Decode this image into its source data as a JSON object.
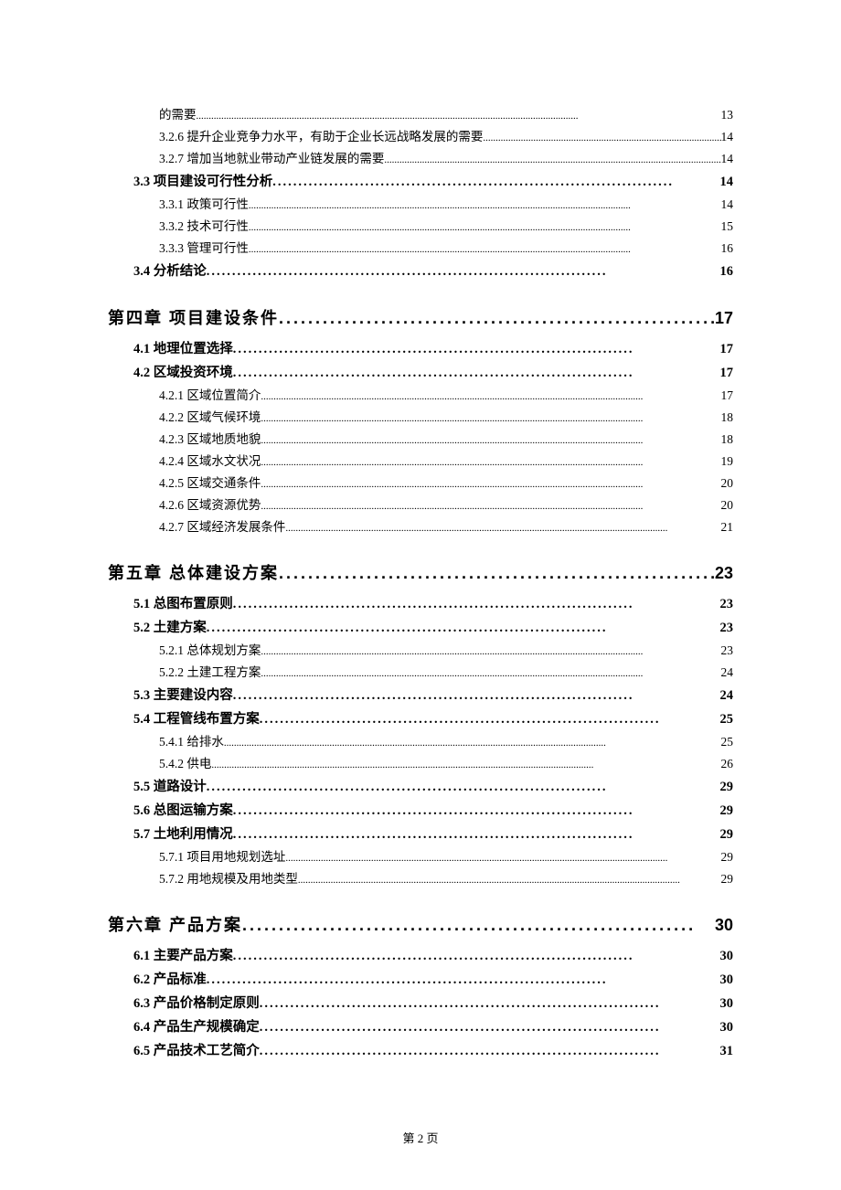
{
  "footer": "第 2 页",
  "entries": [
    {
      "level": 3,
      "label": "的需要",
      "page": "13"
    },
    {
      "level": 3,
      "label": "3.2.6 提升企业竞争力水平，有助于企业长远战略发展的需要",
      "page": "14"
    },
    {
      "level": 3,
      "label": "3.2.7 增加当地就业带动产业链发展的需要",
      "page": "14"
    },
    {
      "level": 2,
      "label": "3.3 项目建设可行性分析",
      "page": "14"
    },
    {
      "level": 3,
      "label": "3.3.1 政策可行性",
      "page": "14"
    },
    {
      "level": 3,
      "label": "3.3.2 技术可行性",
      "page": "15"
    },
    {
      "level": 3,
      "label": "3.3.3 管理可行性",
      "page": "16"
    },
    {
      "level": 2,
      "label": "3.4 分析结论",
      "page": "16"
    },
    {
      "level": 1,
      "label": "第四章 项目建设条件",
      "page": "17"
    },
    {
      "level": 2,
      "label": "4.1 地理位置选择",
      "page": "17"
    },
    {
      "level": 2,
      "label": "4.2 区域投资环境",
      "page": "17"
    },
    {
      "level": 3,
      "label": "4.2.1 区域位置简介",
      "page": "17"
    },
    {
      "level": 3,
      "label": "4.2.2 区域气候环境",
      "page": "18"
    },
    {
      "level": 3,
      "label": "4.2.3 区域地质地貌",
      "page": "18"
    },
    {
      "level": 3,
      "label": "4.2.4 区域水文状况",
      "page": "19"
    },
    {
      "level": 3,
      "label": "4.2.5 区域交通条件",
      "page": "20"
    },
    {
      "level": 3,
      "label": "4.2.6 区域资源优势",
      "page": "20"
    },
    {
      "level": 3,
      "label": "4.2.7 区域经济发展条件",
      "page": "21"
    },
    {
      "level": 1,
      "label": "第五章 总体建设方案",
      "page": "23"
    },
    {
      "level": 2,
      "label": "5.1 总图布置原则",
      "page": "23"
    },
    {
      "level": 2,
      "label": "5.2 土建方案",
      "page": "23"
    },
    {
      "level": 3,
      "label": "5.2.1 总体规划方案",
      "page": "23"
    },
    {
      "level": 3,
      "label": "5.2.2 土建工程方案",
      "page": "24"
    },
    {
      "level": 2,
      "label": "5.3 主要建设内容",
      "page": "24"
    },
    {
      "level": 2,
      "label": "5.4 工程管线布置方案",
      "page": "25"
    },
    {
      "level": 3,
      "label": "5.4.1 给排水",
      "page": "25"
    },
    {
      "level": 3,
      "label": "5.4.2 供电",
      "page": "26"
    },
    {
      "level": 2,
      "label": "5.5 道路设计",
      "page": "29"
    },
    {
      "level": 2,
      "label": "5.6 总图运输方案",
      "page": "29"
    },
    {
      "level": 2,
      "label": "5.7 土地利用情况",
      "page": "29"
    },
    {
      "level": 3,
      "label": "5.7.1 项目用地规划选址",
      "page": "29"
    },
    {
      "level": 3,
      "label": "5.7.2 用地规模及用地类型",
      "page": "29"
    },
    {
      "level": 1,
      "label": "第六章 产品方案",
      "page": "30"
    },
    {
      "level": 2,
      "label": "6.1 主要产品方案",
      "page": "30"
    },
    {
      "level": 2,
      "label": "6.2 产品标准",
      "page": "30"
    },
    {
      "level": 2,
      "label": "6.3 产品价格制定原则",
      "page": "30"
    },
    {
      "level": 2,
      "label": "6.4 产品生产规模确定",
      "page": "30"
    },
    {
      "level": 2,
      "label": "6.5 产品技术工艺简介",
      "page": "31"
    }
  ],
  "dots": {
    "level1": "..............................................................",
    "level2": "..............................................................................",
    "level3": "........................................................................................................................................................"
  }
}
